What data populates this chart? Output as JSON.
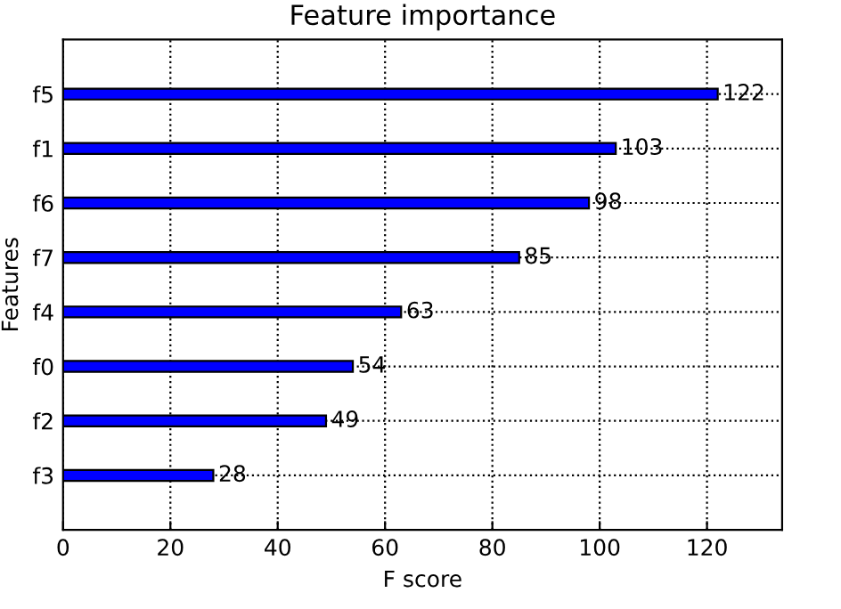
{
  "chart_data": {
    "type": "bar",
    "orientation": "horizontal",
    "title": "Feature importance",
    "xlabel": "F score",
    "ylabel": "Features",
    "categories": [
      "f5",
      "f1",
      "f6",
      "f7",
      "f4",
      "f0",
      "f2",
      "f3"
    ],
    "values": [
      122,
      103,
      98,
      85,
      63,
      54,
      49,
      28
    ],
    "color": "#0000ff",
    "xlim": [
      0,
      134
    ],
    "xticks": [
      0,
      20,
      40,
      60,
      80,
      100,
      120
    ],
    "grid": true,
    "data_labels": true
  }
}
